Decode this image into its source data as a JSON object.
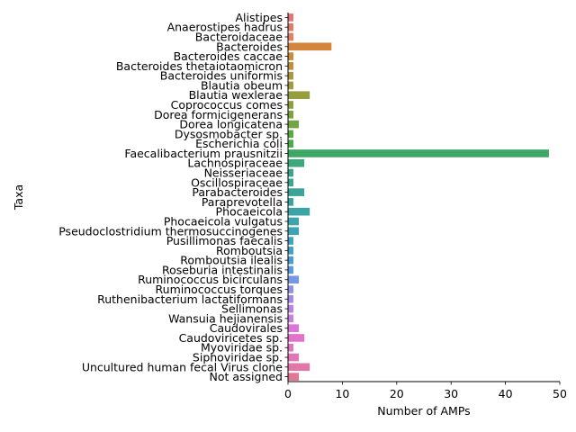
{
  "chart_data": {
    "type": "bar",
    "orientation": "horizontal",
    "xlabel": "Number of AMPs",
    "ylabel": "Taxa",
    "xlim": [
      0,
      50
    ],
    "xticks": [
      0,
      10,
      20,
      30,
      40,
      50
    ],
    "grid": false,
    "legend": "none",
    "categories": [
      "Alistipes",
      "Anaerostipes hadrus",
      "Bacteroidaceae",
      "Bacteroides",
      "Bacteroides caccae",
      "Bacteroides thetaiotaomicron",
      "Bacteroides uniformis",
      "Blautia obeum",
      "Blautia wexlerae",
      "Coprococcus comes",
      "Dorea formicigenerans",
      "Dorea longicatena",
      "Dysosmobacter sp.",
      "Escherichia coli",
      "Faecalibacterium prausnitzii",
      "Lachnospiraceae",
      "Neisseriaceae",
      "Oscillospiraceae",
      "Parabacteroides",
      "Paraprevotella",
      "Phocaeicola",
      "Phocaeicola vulgatus",
      "Pseudoclostridium thermosuccinogenes",
      "Pusillimonas faecalis",
      "Romboutsia",
      "Romboutsia ilealis",
      "Roseburia intestinalis",
      "Ruminococcus bicirculans",
      "Ruminococcus torques",
      "Ruthenibacterium lactatiformans",
      "Sellimonas",
      "Wansuia hejianensis",
      "Caudovirales",
      "Caudoviricetes sp.",
      "Myoviridae sp.",
      "Siphoviridae sp.",
      "Uncultured human fecal Virus clone",
      "Not assigned"
    ],
    "values": [
      1,
      1,
      1,
      8,
      1,
      1,
      1,
      1,
      4,
      1,
      1,
      2,
      1,
      1,
      48,
      3,
      1,
      1,
      3,
      1,
      4,
      2,
      2,
      1,
      1,
      1,
      1,
      2,
      1,
      1,
      1,
      1,
      2,
      3,
      1,
      2,
      4,
      2
    ],
    "colors": [
      "#e1737a",
      "#e07a6b",
      "#dd8264",
      "#d5843d",
      "#c98b3c",
      "#bd9140",
      "#ac9545",
      "#a19a44",
      "#959d3f",
      "#8ba042",
      "#80a342",
      "#73a545",
      "#5da845",
      "#4cab4a",
      "#3fa766",
      "#3aa77c",
      "#3ba48a",
      "#3ca492",
      "#3ca399",
      "#3ba49f",
      "#3da3a6",
      "#3ea4ad",
      "#3fa3b6",
      "#41a3bd",
      "#44a0c6",
      "#4a9dd4",
      "#5b98dc",
      "#7896e2",
      "#938fe5",
      "#a58ae5",
      "#b785e0",
      "#cc7fdd",
      "#db76d7",
      "#e073c8",
      "#e176bf",
      "#e076b5",
      "#e177a8",
      "#e07895"
    ]
  }
}
